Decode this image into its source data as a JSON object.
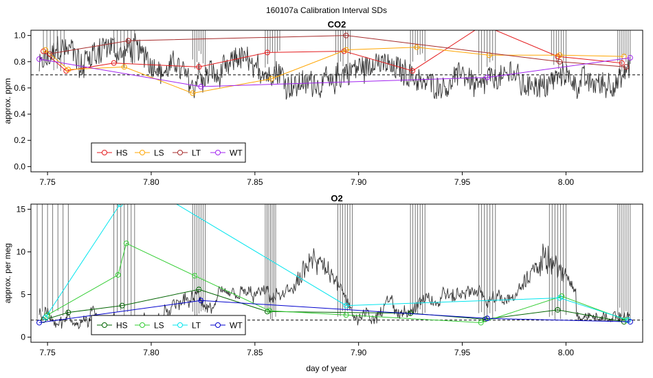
{
  "figure": {
    "title": "160107a   Calibration Interval SDs",
    "xlabel": "day of year"
  },
  "colors": {
    "trace": "#333333",
    "reference_line": "#000000"
  },
  "chart_data": [
    {
      "type": "line",
      "title": "CO2",
      "ylabel": "approx. ppm",
      "xlim": [
        7.742,
        8.037
      ],
      "ylim": [
        -0.04,
        1.04
      ],
      "x_ticks": [
        7.75,
        7.8,
        7.85,
        7.9,
        7.95,
        8.0
      ],
      "x_tick_labels": [
        "7.75",
        "7.80",
        "7.85",
        "7.90",
        "7.95",
        "8.00"
      ],
      "y_ticks": [
        0.0,
        0.2,
        0.4,
        0.6,
        0.8,
        1.0
      ],
      "y_tick_labels": [
        "0.0",
        "0.2",
        "0.4",
        "0.6",
        "0.8",
        "1.0"
      ],
      "reference_line": 0.7,
      "legend_position": "bottom-left",
      "trace_description": "noisy grey time series mostly between 0.55 and 1.0 with dense vertical spikes during calibration periods",
      "trace_range": [
        0.46,
        1.05
      ],
      "spike_clusters": [
        [
          7.748,
          7.758
        ],
        [
          7.782,
          7.792
        ],
        [
          7.82,
          7.826
        ],
        [
          7.855,
          7.862
        ],
        [
          7.889,
          7.896
        ],
        [
          7.925,
          7.932
        ],
        [
          7.958,
          7.966
        ],
        [
          7.993,
          8.0
        ],
        [
          8.025,
          8.031
        ]
      ],
      "series": [
        {
          "name": "HS",
          "color": "#e41a1c",
          "x": [
            7.748,
            7.759,
            7.782,
            7.823,
            7.856,
            7.893,
            7.926,
            7.96,
            7.996,
            8.027
          ],
          "y": [
            0.88,
            0.73,
            0.79,
            0.76,
            0.87,
            0.88,
            0.73,
            1.08,
            0.84,
            0.79
          ]
        },
        {
          "name": "LS",
          "color": "#ffa500",
          "x": [
            7.749,
            7.76,
            7.787,
            7.82,
            7.858,
            7.894,
            7.928,
            7.963,
            7.997,
            8.028
          ],
          "y": [
            0.89,
            0.74,
            0.76,
            0.56,
            0.67,
            0.89,
            0.91,
            0.85,
            0.85,
            0.84
          ]
        },
        {
          "name": "LT",
          "color": "#a52a2a",
          "x": [
            7.751,
            7.789,
            7.894,
            7.997,
            8.029
          ],
          "y": [
            0.86,
            0.96,
            1.0,
            0.8,
            0.76
          ]
        },
        {
          "name": "WT",
          "color": "#a020f0",
          "x": [
            7.746,
            7.824,
            7.962,
            8.031
          ],
          "y": [
            0.82,
            0.61,
            0.68,
            0.83
          ]
        }
      ]
    },
    {
      "type": "line",
      "title": "O2",
      "ylabel": "approx. per meg",
      "xlim": [
        7.742,
        8.037
      ],
      "ylim": [
        -0.6,
        15.6
      ],
      "x_ticks": [
        7.75,
        7.8,
        7.85,
        7.9,
        7.95,
        8.0
      ],
      "x_tick_labels": [
        "7.75",
        "7.80",
        "7.85",
        "7.90",
        "7.95",
        "8.00"
      ],
      "y_ticks": [
        0,
        5,
        10,
        15
      ],
      "y_tick_labels": [
        "0",
        "5",
        "10",
        "15"
      ],
      "reference_line": 2.0,
      "legend_position": "bottom-left",
      "trace_description": "noisy grey time series mostly between 1.5 and 5 with tall vertical spikes during calibration periods and larger excursions near 7.89 and 8.00",
      "trace_range": [
        1.0,
        15.6
      ],
      "spike_clusters": [
        [
          7.745,
          7.76
        ],
        [
          7.782,
          7.792
        ],
        [
          7.82,
          7.826
        ],
        [
          7.855,
          7.86
        ],
        [
          7.89,
          7.897
        ],
        [
          7.925,
          7.932
        ],
        [
          7.958,
          7.966
        ],
        [
          7.992,
          8.0
        ],
        [
          8.025,
          8.031
        ]
      ],
      "series": [
        {
          "name": "HS",
          "color": "#006400",
          "x": [
            7.748,
            7.76,
            7.786,
            7.823,
            7.856,
            7.925,
            7.961,
            7.996,
            8.028
          ],
          "y": [
            2.0,
            2.9,
            3.7,
            5.6,
            3.0,
            2.8,
            2.1,
            3.2,
            1.8
          ]
        },
        {
          "name": "LS",
          "color": "#32cd32",
          "x": [
            7.75,
            7.784,
            7.788,
            7.821,
            7.857,
            7.894,
            7.959,
            7.998,
            8.029
          ],
          "y": [
            2.6,
            7.3,
            11.0,
            7.2,
            3.1,
            2.6,
            1.7,
            4.8,
            2.0
          ]
        },
        {
          "name": "LT",
          "color": "#00e5ee",
          "x": [
            7.749,
            7.785,
            7.806,
            7.894,
            7.997,
            8.03
          ],
          "y": [
            2.3,
            15.6,
            16.5,
            3.7,
            4.6,
            2.0
          ]
        },
        {
          "name": "WT",
          "color": "#0000cd",
          "x": [
            7.746,
            7.824,
            7.962,
            8.031
          ],
          "y": [
            1.7,
            4.3,
            2.2,
            1.8
          ]
        }
      ]
    }
  ]
}
